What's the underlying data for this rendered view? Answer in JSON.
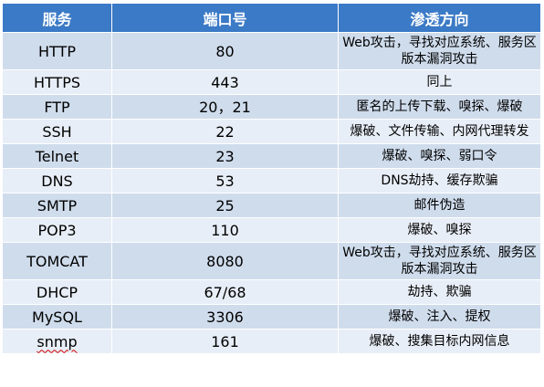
{
  "headers": [
    "服务",
    "端口号",
    "渗透方向"
  ],
  "rows": [
    {
      "service": "HTTP",
      "port": "80",
      "direction": "Web攻击，寻找对应系统、服务区版本漏洞攻击"
    },
    {
      "service": "HTTPS",
      "port": "443",
      "direction": "同上"
    },
    {
      "service": "FTP",
      "port": "20，21",
      "direction": "匿名的上传下载、嗅探、爆破"
    },
    {
      "service": "SSH",
      "port": "22",
      "direction": "爆破、文件传输、内网代理转发"
    },
    {
      "service": "Telnet",
      "port": "23",
      "direction": "爆破、嗅探、弱口令"
    },
    {
      "service": "DNS",
      "port": "53",
      "direction": "DNS劫持、缓存欺骗"
    },
    {
      "service": "SMTP",
      "port": "25",
      "direction": "邮件伪造"
    },
    {
      "service": "POP3",
      "port": "110",
      "direction": "爆破、嗅探"
    },
    {
      "service": "TOMCAT",
      "port": "8080",
      "direction": "Web攻击，寻找对应系统、服务区版本漏洞攻击"
    },
    {
      "service": "DHCP",
      "port": "67/68",
      "direction": "劫持、欺骗"
    },
    {
      "service": "MySQL",
      "port": "3306",
      "direction": "爆破、注入、提权"
    },
    {
      "service": "snmp",
      "port": "161",
      "direction": "爆破、搜集目标内网信息"
    }
  ],
  "colors": {
    "header_bg": "#3b7ac6",
    "row_odd_bg": "#cfdcec",
    "row_even_bg": "#e8eef7",
    "spellcheck_underline": "#d00000"
  }
}
